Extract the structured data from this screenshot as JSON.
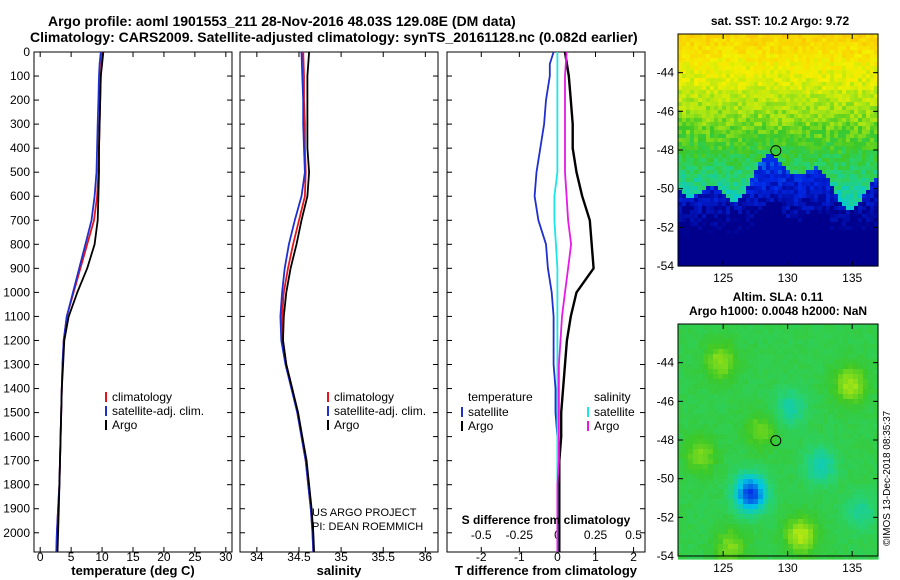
{
  "header": {
    "title_line1": "Argo profile: aoml 1901553_211 28-Nov-2016 48.03S 129.08E (DM data)",
    "title_line2": "Climatology: CARS2009. Satellite-adjusted climatology: synTS_20161128.nc (0.082d earlier)"
  },
  "colors": {
    "climatology": "#e8141c",
    "satellite": "#1f2fd0",
    "argo": "#000000",
    "sat_salinity": "#19e6e6",
    "argo_salinity": "#e619e6"
  },
  "chart_data": [
    {
      "id": "temperature",
      "type": "line",
      "xlabel": "temperature (deg C)",
      "xlim": [
        -1,
        31
      ],
      "xticks": [
        0,
        5,
        10,
        15,
        20,
        25,
        30
      ],
      "xtick_labels": [
        "0",
        "5",
        "10",
        "15",
        "20",
        "25",
        "30"
      ],
      "ylim": [
        0,
        2080
      ],
      "yticks": [
        0,
        100,
        200,
        300,
        400,
        500,
        600,
        700,
        800,
        900,
        1000,
        1100,
        1200,
        1300,
        1400,
        1500,
        1600,
        1700,
        1800,
        1900,
        2000
      ],
      "ytick_labels": [
        "0",
        "100",
        "200",
        "300",
        "400",
        "500",
        "600",
        "700",
        "800",
        "900",
        "1000",
        "1100",
        "1200",
        "1300",
        "1400",
        "1500",
        "1600",
        "1700",
        "1800",
        "1900",
        "2000"
      ],
      "legend": [
        "climatology",
        "satellite-adj. clim.",
        "Argo"
      ],
      "series": [
        {
          "name": "climatology",
          "color": "#e8141c",
          "depth": [
            0,
            50,
            100,
            200,
            300,
            400,
            500,
            600,
            700,
            800,
            900,
            1000,
            1100,
            1200,
            1300,
            1400,
            1500,
            1600,
            1700,
            1800,
            1900,
            2000,
            2080
          ],
          "values": [
            10.0,
            9.9,
            9.8,
            9.7,
            9.6,
            9.5,
            9.4,
            9.2,
            8.7,
            7.6,
            6.5,
            5.4,
            4.3,
            3.8,
            3.6,
            3.5,
            3.4,
            3.3,
            3.2,
            3.1,
            2.9,
            2.7,
            2.6
          ]
        },
        {
          "name": "satellite-adj. clim.",
          "color": "#1f2fd0",
          "depth": [
            0,
            50,
            100,
            200,
            300,
            400,
            500,
            600,
            700,
            800,
            900,
            1000,
            1100,
            1200,
            1300,
            1400,
            1500,
            1600,
            1700,
            1800,
            1900,
            2000,
            2080
          ],
          "values": [
            9.8,
            9.6,
            9.5,
            9.4,
            9.3,
            9.2,
            9.1,
            8.8,
            8.3,
            7.3,
            6.3,
            5.3,
            4.3,
            3.8,
            3.6,
            3.5,
            3.4,
            3.3,
            3.2,
            3.1,
            2.9,
            2.7,
            2.6
          ]
        },
        {
          "name": "Argo",
          "color": "#000000",
          "depth": [
            0,
            50,
            100,
            200,
            300,
            400,
            500,
            600,
            700,
            800,
            900,
            1000,
            1100,
            1200,
            1300,
            1400,
            1500,
            1600,
            1700,
            1800,
            1900,
            2000,
            2080
          ],
          "values": [
            10.2,
            10.0,
            9.8,
            9.7,
            9.6,
            9.5,
            9.5,
            9.4,
            9.3,
            8.8,
            7.6,
            6.0,
            4.6,
            3.9,
            3.7,
            3.5,
            3.4,
            3.3,
            3.2,
            3.1,
            3.0,
            2.9,
            2.8
          ]
        }
      ]
    },
    {
      "id": "salinity",
      "type": "line",
      "xlabel": "salinity",
      "xlim": [
        33.8,
        36.15
      ],
      "xticks": [
        34,
        34.5,
        35,
        35.5,
        36
      ],
      "xtick_labels": [
        "34",
        "34.5",
        "35",
        "35.5",
        "36"
      ],
      "ylim": [
        0,
        2080
      ],
      "legend": [
        "climatology",
        "satellite-adj. clim.",
        "Argo"
      ],
      "credit": [
        "US ARGO PROJECT",
        "PI: DEAN ROEMMICH"
      ],
      "series": [
        {
          "name": "climatology",
          "color": "#e8141c",
          "depth": [
            0,
            100,
            200,
            300,
            400,
            500,
            600,
            700,
            800,
            900,
            1000,
            1100,
            1200,
            1300,
            1400,
            1500,
            1600,
            1700,
            1800,
            1900,
            2000,
            2080
          ],
          "values": [
            34.55,
            34.56,
            34.56,
            34.57,
            34.57,
            34.58,
            34.57,
            34.5,
            34.43,
            34.37,
            34.32,
            34.3,
            34.31,
            34.35,
            34.42,
            34.48,
            34.53,
            34.58,
            34.61,
            34.64,
            34.66,
            34.67
          ]
        },
        {
          "name": "satellite-adj. clim.",
          "color": "#1f2fd0",
          "depth": [
            0,
            100,
            200,
            300,
            400,
            500,
            600,
            700,
            800,
            900,
            1000,
            1100,
            1200,
            1300,
            1400,
            1500,
            1600,
            1700,
            1800,
            1900,
            2000,
            2080
          ],
          "values": [
            34.53,
            34.54,
            34.55,
            34.55,
            34.56,
            34.57,
            34.53,
            34.45,
            34.38,
            34.33,
            34.3,
            34.28,
            34.29,
            34.34,
            34.41,
            34.48,
            34.53,
            34.58,
            34.61,
            34.64,
            34.66,
            34.67
          ]
        },
        {
          "name": "Argo",
          "color": "#000000",
          "depth": [
            0,
            100,
            200,
            300,
            400,
            500,
            600,
            700,
            800,
            900,
            1000,
            1100,
            1200,
            1300,
            1400,
            1500,
            1600,
            1700,
            1800,
            1900,
            2000,
            2080
          ],
          "values": [
            34.62,
            34.6,
            34.6,
            34.6,
            34.6,
            34.62,
            34.6,
            34.53,
            34.47,
            34.4,
            34.35,
            34.32,
            34.31,
            34.35,
            34.42,
            34.49,
            34.54,
            34.59,
            34.62,
            34.65,
            34.67,
            34.68
          ]
        }
      ]
    },
    {
      "id": "differences",
      "type": "line",
      "xlabel": "T difference from climatology",
      "xlabel_top": "S difference from climatology",
      "xlim": [
        -2.9,
        2.3
      ],
      "xticks": [
        -2,
        -1,
        0,
        1,
        2
      ],
      "xtick_labels": [
        "-2",
        "-1",
        "0",
        "1",
        "2"
      ],
      "s_xticks": [
        -0.5,
        -0.25,
        0,
        0.25,
        0.5
      ],
      "s_xtick_labels": [
        "-0.5",
        "-0.25",
        "0",
        "0.25",
        "0.5"
      ],
      "ylim": [
        0,
        2080
      ],
      "legend_left_title": "temperature",
      "legend_right_title": "salinity",
      "legend_left": [
        "satellite",
        "Argo"
      ],
      "legend_right": [
        "satellite",
        "Argo"
      ],
      "series": [
        {
          "name": "T satellite",
          "color": "#1f2fd0",
          "depth": [
            0,
            50,
            100,
            200,
            300,
            400,
            500,
            600,
            700,
            800,
            900,
            1000,
            1100,
            1200,
            1300,
            1400,
            1500,
            1600,
            1700,
            1800,
            1900,
            2000,
            2080
          ],
          "values": [
            -0.1,
            -0.2,
            -0.2,
            -0.3,
            -0.35,
            -0.45,
            -0.55,
            -0.6,
            -0.5,
            -0.3,
            -0.25,
            -0.15,
            -0.1,
            -0.1,
            -0.1,
            -0.05,
            -0.05,
            0,
            0,
            0,
            0,
            0,
            0
          ]
        },
        {
          "name": "T Argo",
          "color": "#000000",
          "depth": [
            0,
            50,
            100,
            200,
            300,
            400,
            500,
            600,
            700,
            800,
            900,
            1000,
            1100,
            1200,
            1300,
            1400,
            1500,
            1600,
            1700,
            1800,
            1900,
            2000,
            2080
          ],
          "values": [
            0.2,
            0.25,
            0.3,
            0.35,
            0.4,
            0.4,
            0.5,
            0.65,
            0.85,
            0.9,
            0.95,
            0.5,
            0.35,
            0.25,
            0.2,
            0.15,
            0.1,
            0.1,
            0.05,
            0.05,
            0.05,
            0.05,
            0.05
          ]
        },
        {
          "name": "S satellite",
          "color": "#19e6e6",
          "depth": [
            0,
            100,
            200,
            300,
            400,
            500,
            600,
            700,
            800,
            900,
            1000,
            1100,
            1200,
            1300,
            1400,
            1500,
            1600,
            1700,
            1800,
            1900,
            2000,
            2080
          ],
          "values": [
            0,
            0,
            0,
            0,
            0,
            0,
            -0.02,
            -0.02,
            -0.01,
            0,
            0,
            0,
            0,
            0,
            0,
            0,
            0,
            0,
            0,
            0,
            0,
            0
          ]
        },
        {
          "name": "S Argo",
          "color": "#e619e6",
          "depth": [
            0,
            100,
            200,
            300,
            400,
            500,
            600,
            700,
            800,
            900,
            1000,
            1100,
            1200,
            1300,
            1400,
            1500,
            1600,
            1700,
            1800,
            1900,
            2000,
            2080
          ],
          "values": [
            0.06,
            0.05,
            0.05,
            0.05,
            0.05,
            0.05,
            0.06,
            0.07,
            0.09,
            0.07,
            0.05,
            0.03,
            0.02,
            0.01,
            0.01,
            0.01,
            0.01,
            0.01,
            0,
            0,
            0,
            0
          ]
        }
      ]
    },
    {
      "id": "sst_map",
      "type": "heatmap",
      "title": "sat. SST: 10.2 Argo: 9.72",
      "xlim": [
        121.5,
        137
      ],
      "ylim": [
        -54,
        -42
      ],
      "xticks": [
        125,
        130,
        135
      ],
      "xtick_labels": [
        "125",
        "130",
        "135"
      ],
      "yticks": [
        -44,
        -46,
        -48,
        -50,
        -52,
        -54
      ],
      "ytick_labels": [
        "-44",
        "-46",
        "-48",
        "-50",
        "-52",
        "-54"
      ],
      "marker": {
        "lon": 129.08,
        "lat": -48.03
      }
    },
    {
      "id": "sla_map",
      "type": "heatmap",
      "title_line1": "Altim. SLA: 0.11",
      "title_line2": "Argo h1000: 0.0048 h2000: NaN",
      "xlim": [
        121.5,
        137
      ],
      "ylim": [
        -54,
        -42
      ],
      "xticks": [
        125,
        130,
        135
      ],
      "xtick_labels": [
        "125",
        "130",
        "135"
      ],
      "yticks": [
        -44,
        -46,
        -48,
        -50,
        -52,
        -54
      ],
      "ytick_labels": [
        "-44",
        "-46",
        "-48",
        "-50",
        "-52",
        "-54"
      ],
      "marker": {
        "lon": 129.08,
        "lat": -48.03
      }
    }
  ],
  "footer": {
    "stamp": "©IMOS 13-Dec-2018 08:35:37"
  }
}
